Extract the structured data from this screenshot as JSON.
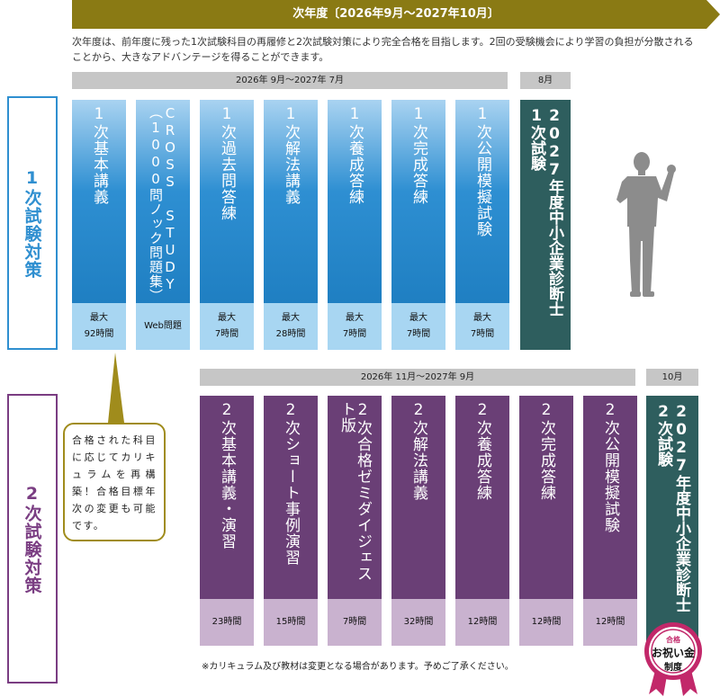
{
  "banner": {
    "title": "次年度〔2026年9月～2027年10月〕"
  },
  "description": "次年度は、前年度に残った1次試験科目の再履修と2次試験対策により完全合格を目指します。2回の受験機会により学習の負担が分散されることから、大きなアドバンテージを得ることができます。",
  "stage1": {
    "label": "1次試験対策",
    "period": "2026年 9月～2027年 7月",
    "exam_month": "8月",
    "courses": [
      {
        "name": "1次基本講義",
        "detail": "最大\n92時間"
      },
      {
        "name": "CROSS STUDY（1000問ノック問題集）",
        "detail": "Web問題"
      },
      {
        "name": "1次過去問答練",
        "detail": "最大\n7時間"
      },
      {
        "name": "1次解法講義",
        "detail": "最大\n28時間"
      },
      {
        "name": "1次養成答練",
        "detail": "最大\n7時間"
      },
      {
        "name": "1次完成答練",
        "detail": "最大\n7時間"
      },
      {
        "name": "1次公開模擬試験",
        "detail": "最大\n7時間"
      }
    ],
    "exam": "2027年度中小企業診断士 1次試験"
  },
  "stage2": {
    "label": "2次試験対策",
    "period": "2026年 11月～2027年 9月",
    "exam_month": "10月",
    "courses": [
      {
        "name": "2次基本講義・演習",
        "detail": "23時間"
      },
      {
        "name": "2次ショート事例演習",
        "detail": "15時間"
      },
      {
        "name": "2次合格ゼミダイジェスト版",
        "detail": "7時間"
      },
      {
        "name": "2次解法講義",
        "detail": "32時間"
      },
      {
        "name": "2次養成答練",
        "detail": "12時間"
      },
      {
        "name": "2次完成答練",
        "detail": "12時間"
      },
      {
        "name": "2次公開模擬試験",
        "detail": "12時間"
      }
    ],
    "exam": "2027年度中小企業診断士 2次試験"
  },
  "bubble": "合格された科目に応じてカリキュラムを再構築！合格目標年次の変更も可能です。",
  "note": "※カリキュラム及び教材は変更となる場合があります。予めご了承ください。",
  "badge": {
    "top": "合格",
    "main": "お祝い金",
    "bottom": "制度"
  },
  "colors": {
    "gold": "#8a7a14",
    "blue": "#1f7fc2",
    "purple": "#6a3f76",
    "exam": "#2e5e5e",
    "badge": "#c2286a"
  }
}
